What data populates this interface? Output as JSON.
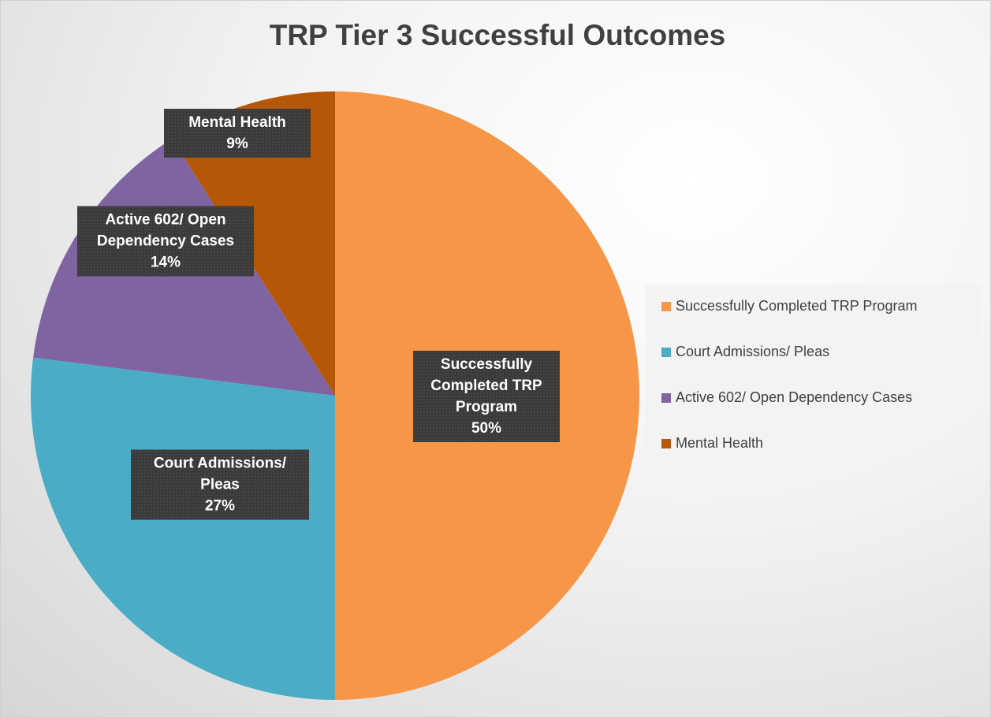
{
  "chart_data": {
    "type": "pie",
    "title": "TRP Tier 3 Successful Outcomes",
    "categories": [
      "Successfully Completed TRP Program",
      "Court Admissions/ Pleas",
      "Active 602/ Open Dependency Cases",
      "Mental Health"
    ],
    "values": [
      50,
      27,
      14,
      9
    ],
    "value_labels": [
      "50%",
      "27%",
      "14%",
      "9%"
    ],
    "colors": [
      "#f79646",
      "#4bacc6",
      "#8064a2",
      "#b65708"
    ],
    "legend": "right"
  }
}
